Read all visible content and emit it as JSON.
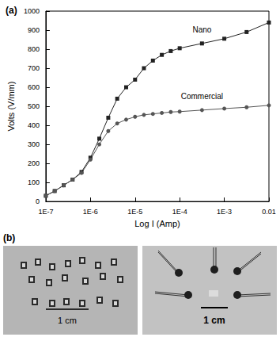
{
  "chart_data": {
    "type": "line",
    "title": "(a)",
    "x_label": "Log I (Amp)",
    "y_label": "Volts (V/mm)",
    "log": "x",
    "grid": false,
    "xlim": [
      1e-07,
      0.01
    ],
    "xticks": [
      {
        "value": 1e-07,
        "label": "1E-7"
      },
      {
        "value": 1e-06,
        "label": "1E-6"
      },
      {
        "value": 1e-05,
        "label": "1E-5"
      },
      {
        "value": 0.0001,
        "label": "1E-4"
      },
      {
        "value": 0.001,
        "label": "1E-3"
      },
      0.01
    ],
    "ylim": [
      0,
      1000
    ],
    "yticks": [
      0,
      100,
      200,
      300,
      400,
      500,
      600,
      700,
      800,
      900,
      1000
    ],
    "x": [
      1e-07,
      1.58e-07,
      2.51e-07,
      3.98e-07,
      6.31e-07,
      1e-06,
      1.58e-06,
      2.51e-06,
      3.98e-06,
      6.31e-06,
      1e-05,
      1.58e-05,
      2.51e-05,
      3.98e-05,
      6.31e-05,
      0.0001,
      0.000316,
      0.001,
      0.00316,
      0.01
    ],
    "series": [
      {
        "name": "Nano",
        "color": "#222222",
        "marker": "square",
        "line_style": "solid",
        "values": [
          30,
          55,
          85,
          115,
          155,
          230,
          330,
          440,
          540,
          600,
          640,
          700,
          740,
          770,
          790,
          805,
          830,
          855,
          890,
          940
        ]
      },
      {
        "name": "Commercial",
        "color": "#555555",
        "marker": "circle",
        "line_style": "solid",
        "values": [
          30,
          55,
          85,
          115,
          150,
          220,
          300,
          370,
          410,
          430,
          445,
          455,
          460,
          465,
          470,
          472,
          480,
          488,
          495,
          505
        ]
      }
    ]
  },
  "photo_panel": {
    "label": "(b)",
    "scale_labels": [
      "1 cm",
      "1 cm"
    ]
  }
}
